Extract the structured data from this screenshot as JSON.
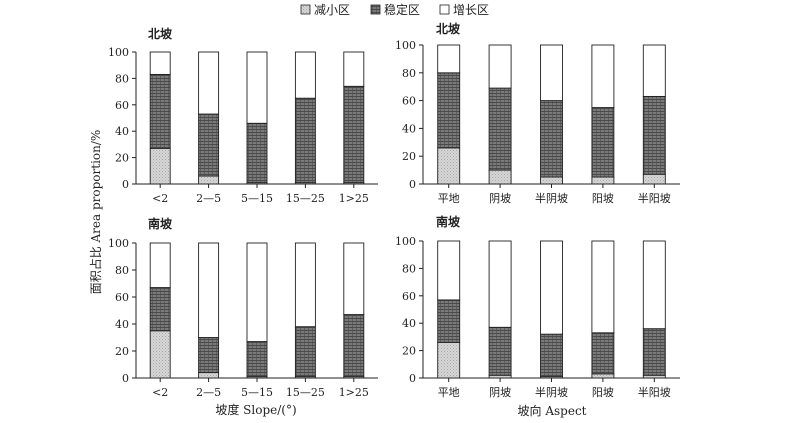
{
  "legend": [
    {
      "label": "减小区",
      "fill": "#cccccc"
    },
    {
      "label": "稳定区",
      "fill": "#6a6a6a"
    },
    {
      "label": "增长区",
      "fill": "#ffffff"
    }
  ],
  "ylabel": "面积占比 Area proportion/%",
  "xlabels": {
    "slope": "坡度 Slope/(°)",
    "aspect": "坡向 Aspect"
  },
  "chart_data": [
    {
      "type": "bar",
      "stacked": true,
      "panel_title": "北坡",
      "categories": [
        "<2",
        "2—5",
        "5—15",
        "15—25",
        "1>25"
      ],
      "ylim": [
        0,
        100
      ],
      "yticks": [
        0,
        20,
        40,
        60,
        80,
        100
      ],
      "series": [
        {
          "name": "减小区",
          "values": [
            27,
            6,
            1,
            1,
            1
          ]
        },
        {
          "name": "稳定区",
          "values": [
            56,
            47,
            45,
            64,
            73
          ]
        },
        {
          "name": "增长区",
          "values": [
            17,
            47,
            54,
            35,
            26
          ]
        }
      ]
    },
    {
      "type": "bar",
      "stacked": true,
      "panel_title": "北坡",
      "categories": [
        "平地",
        "阴坡",
        "半阴坡",
        "阳坡",
        "半阳坡"
      ],
      "ylim": [
        0,
        100
      ],
      "yticks": [
        0,
        20,
        40,
        60,
        80,
        100
      ],
      "series": [
        {
          "name": "减小区",
          "values": [
            26,
            10,
            5,
            5,
            7
          ]
        },
        {
          "name": "稳定区",
          "values": [
            54,
            59,
            55,
            50,
            56
          ]
        },
        {
          "name": "增长区",
          "values": [
            20,
            31,
            40,
            45,
            37
          ]
        }
      ]
    },
    {
      "type": "bar",
      "stacked": true,
      "panel_title": "南坡",
      "categories": [
        "<2",
        "2—5",
        "5—15",
        "15—25",
        "1>25"
      ],
      "ylim": [
        0,
        100
      ],
      "yticks": [
        0,
        20,
        40,
        60,
        80,
        100
      ],
      "series": [
        {
          "name": "减小区",
          "values": [
            35,
            4,
            1,
            1,
            1
          ]
        },
        {
          "name": "稳定区",
          "values": [
            32,
            26,
            26,
            37,
            46
          ]
        },
        {
          "name": "增长区",
          "values": [
            33,
            70,
            73,
            62,
            53
          ]
        }
      ]
    },
    {
      "type": "bar",
      "stacked": true,
      "panel_title": "南坡",
      "categories": [
        "平地",
        "阴坡",
        "半阴坡",
        "阳坡",
        "半阳坡"
      ],
      "ylim": [
        0,
        100
      ],
      "yticks": [
        0,
        20,
        40,
        60,
        80,
        100
      ],
      "series": [
        {
          "name": "减小区",
          "values": [
            26,
            2,
            1,
            3,
            2
          ]
        },
        {
          "name": "稳定区",
          "values": [
            31,
            35,
            31,
            30,
            34
          ]
        },
        {
          "name": "增长区",
          "values": [
            43,
            63,
            68,
            67,
            64
          ]
        }
      ]
    }
  ]
}
